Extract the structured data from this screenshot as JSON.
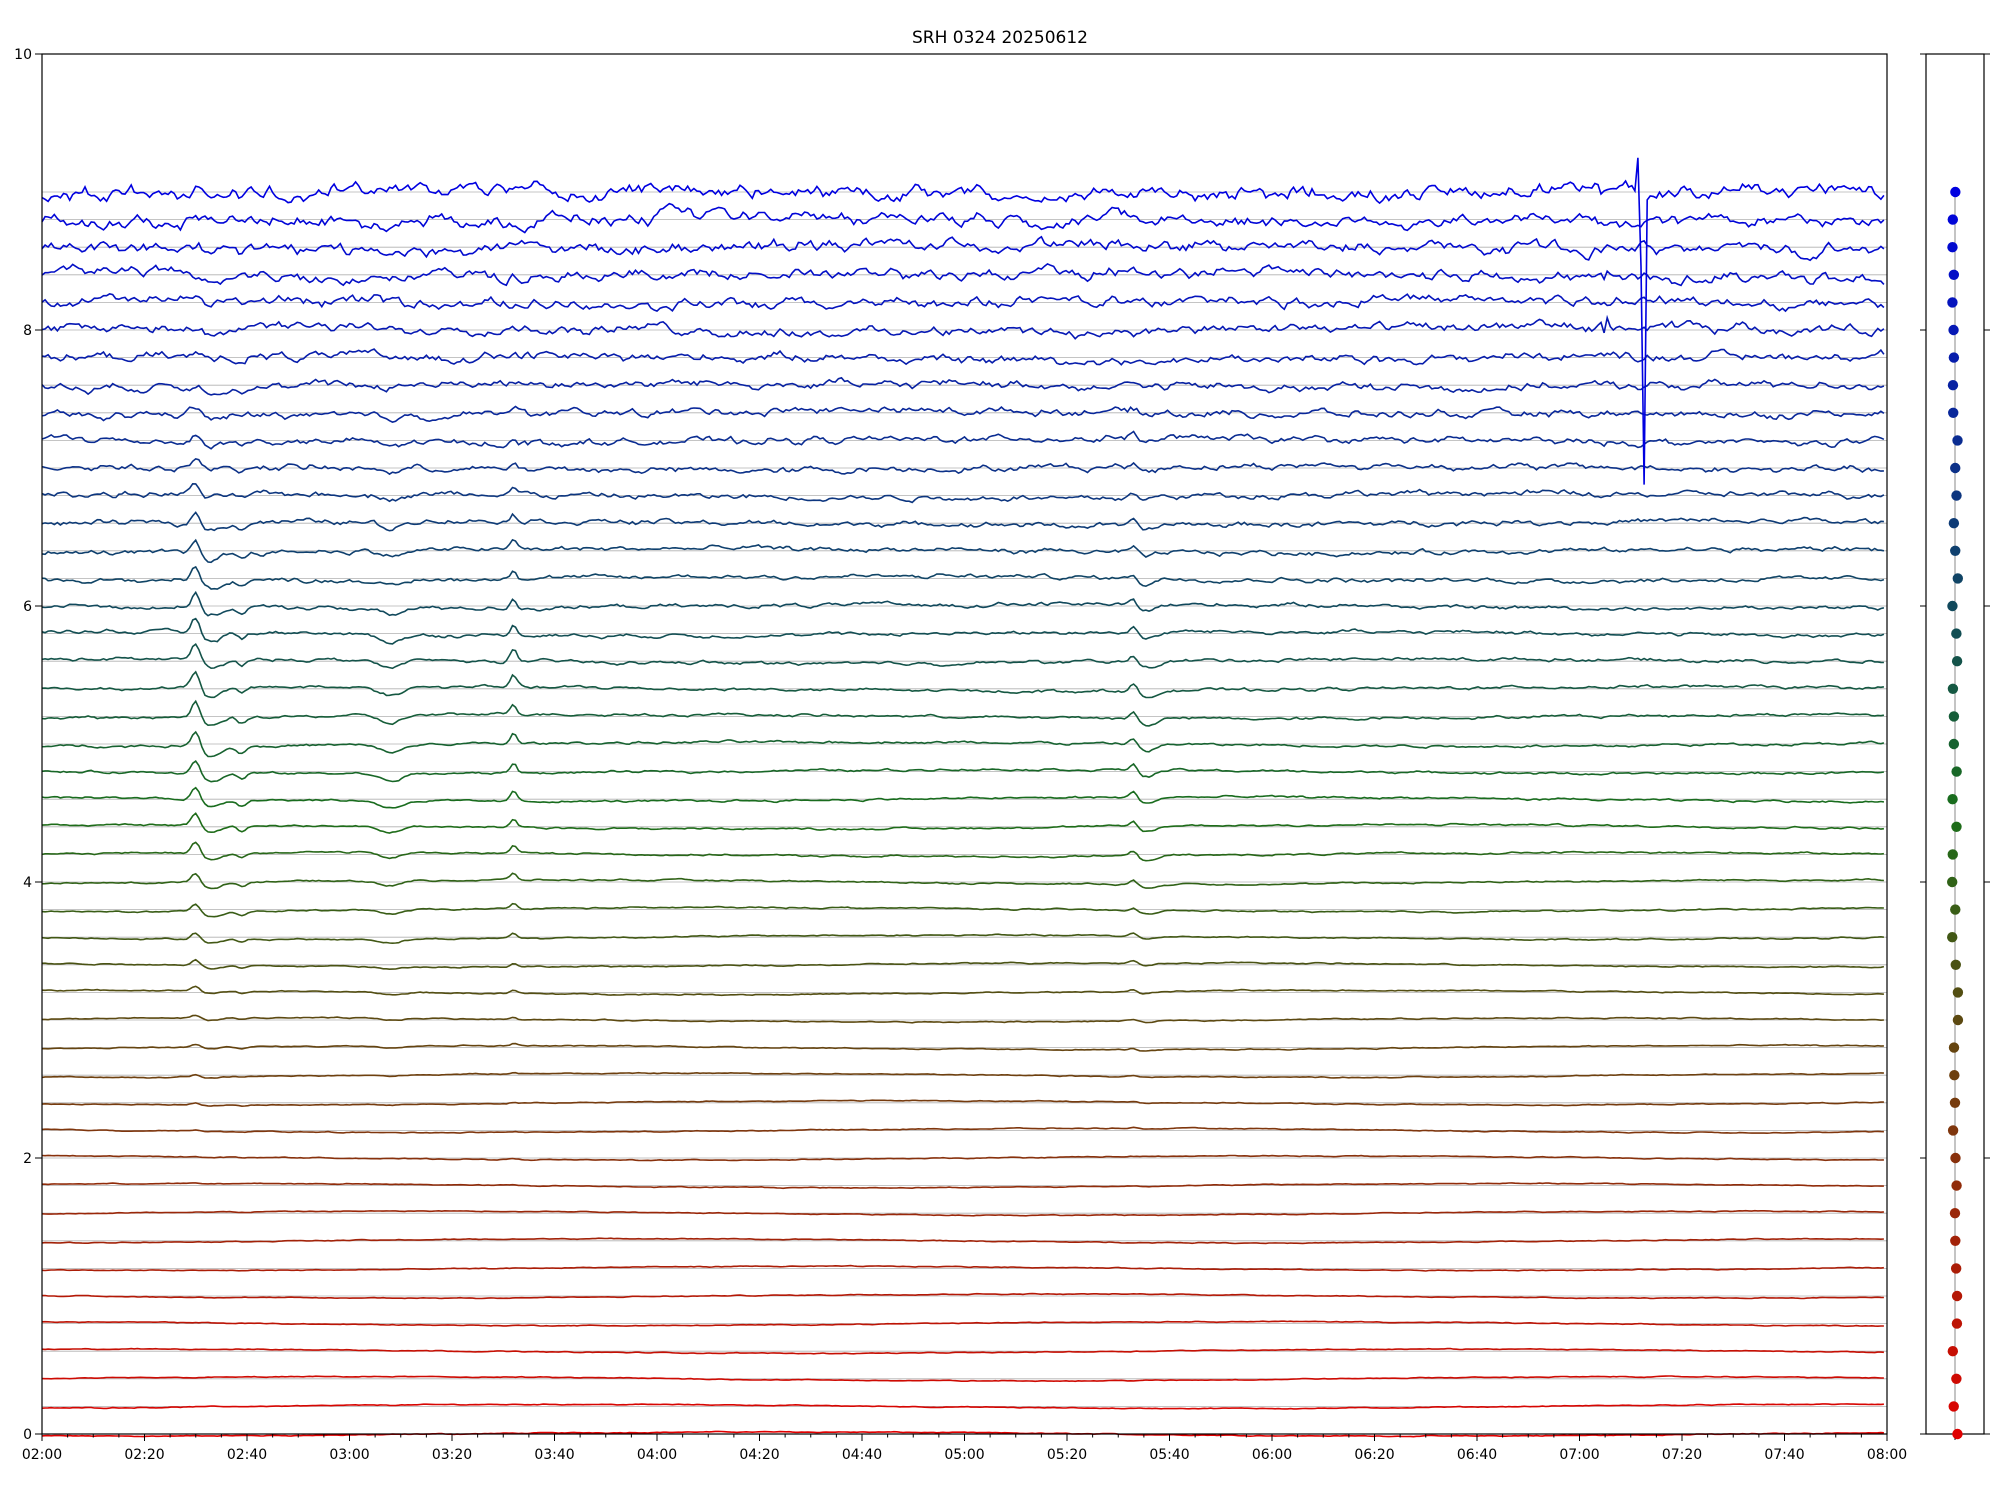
{
  "chart_data": {
    "type": "line",
    "title": "SRH 0324 20250612",
    "xlabel": "",
    "ylabel": "",
    "x_range": [
      "02:00",
      "08:00"
    ],
    "x_tick_labels": [
      "02:00",
      "02:20",
      "02:40",
      "03:00",
      "03:20",
      "03:40",
      "04:00",
      "04:20",
      "04:40",
      "05:00",
      "05:20",
      "05:40",
      "06:00",
      "06:20",
      "06:40",
      "07:00",
      "07:20",
      "07:40",
      "08:00"
    ],
    "ylim": [
      0,
      10
    ],
    "y_tick_labels": [
      "0",
      "2",
      "4",
      "6",
      "8",
      "10"
    ],
    "grid": true,
    "n_series": 46,
    "baseline_spacing": 0.2,
    "color_start": "#e00000",
    "color_mid": "#1a6e1a",
    "color_end": "#0000e0",
    "events": [
      {
        "time": "02:30",
        "description": "sharp spike in mid-level channels"
      },
      {
        "time": "02:39",
        "description": "dip in mid and lower channels"
      },
      {
        "time": "03:08",
        "description": "dip in mid channels"
      },
      {
        "time": "03:32",
        "description": "spike in mid channels"
      },
      {
        "time": "05:33",
        "description": "spike in mid channels"
      },
      {
        "time": "07:05",
        "description": "large disturbance in upper channels"
      },
      {
        "time": "07:12",
        "description": "large vertical spike in upper channels, peak near 9.35, trough near 5.9"
      }
    ],
    "legend_markers": "right-side colored dots, one per series"
  }
}
